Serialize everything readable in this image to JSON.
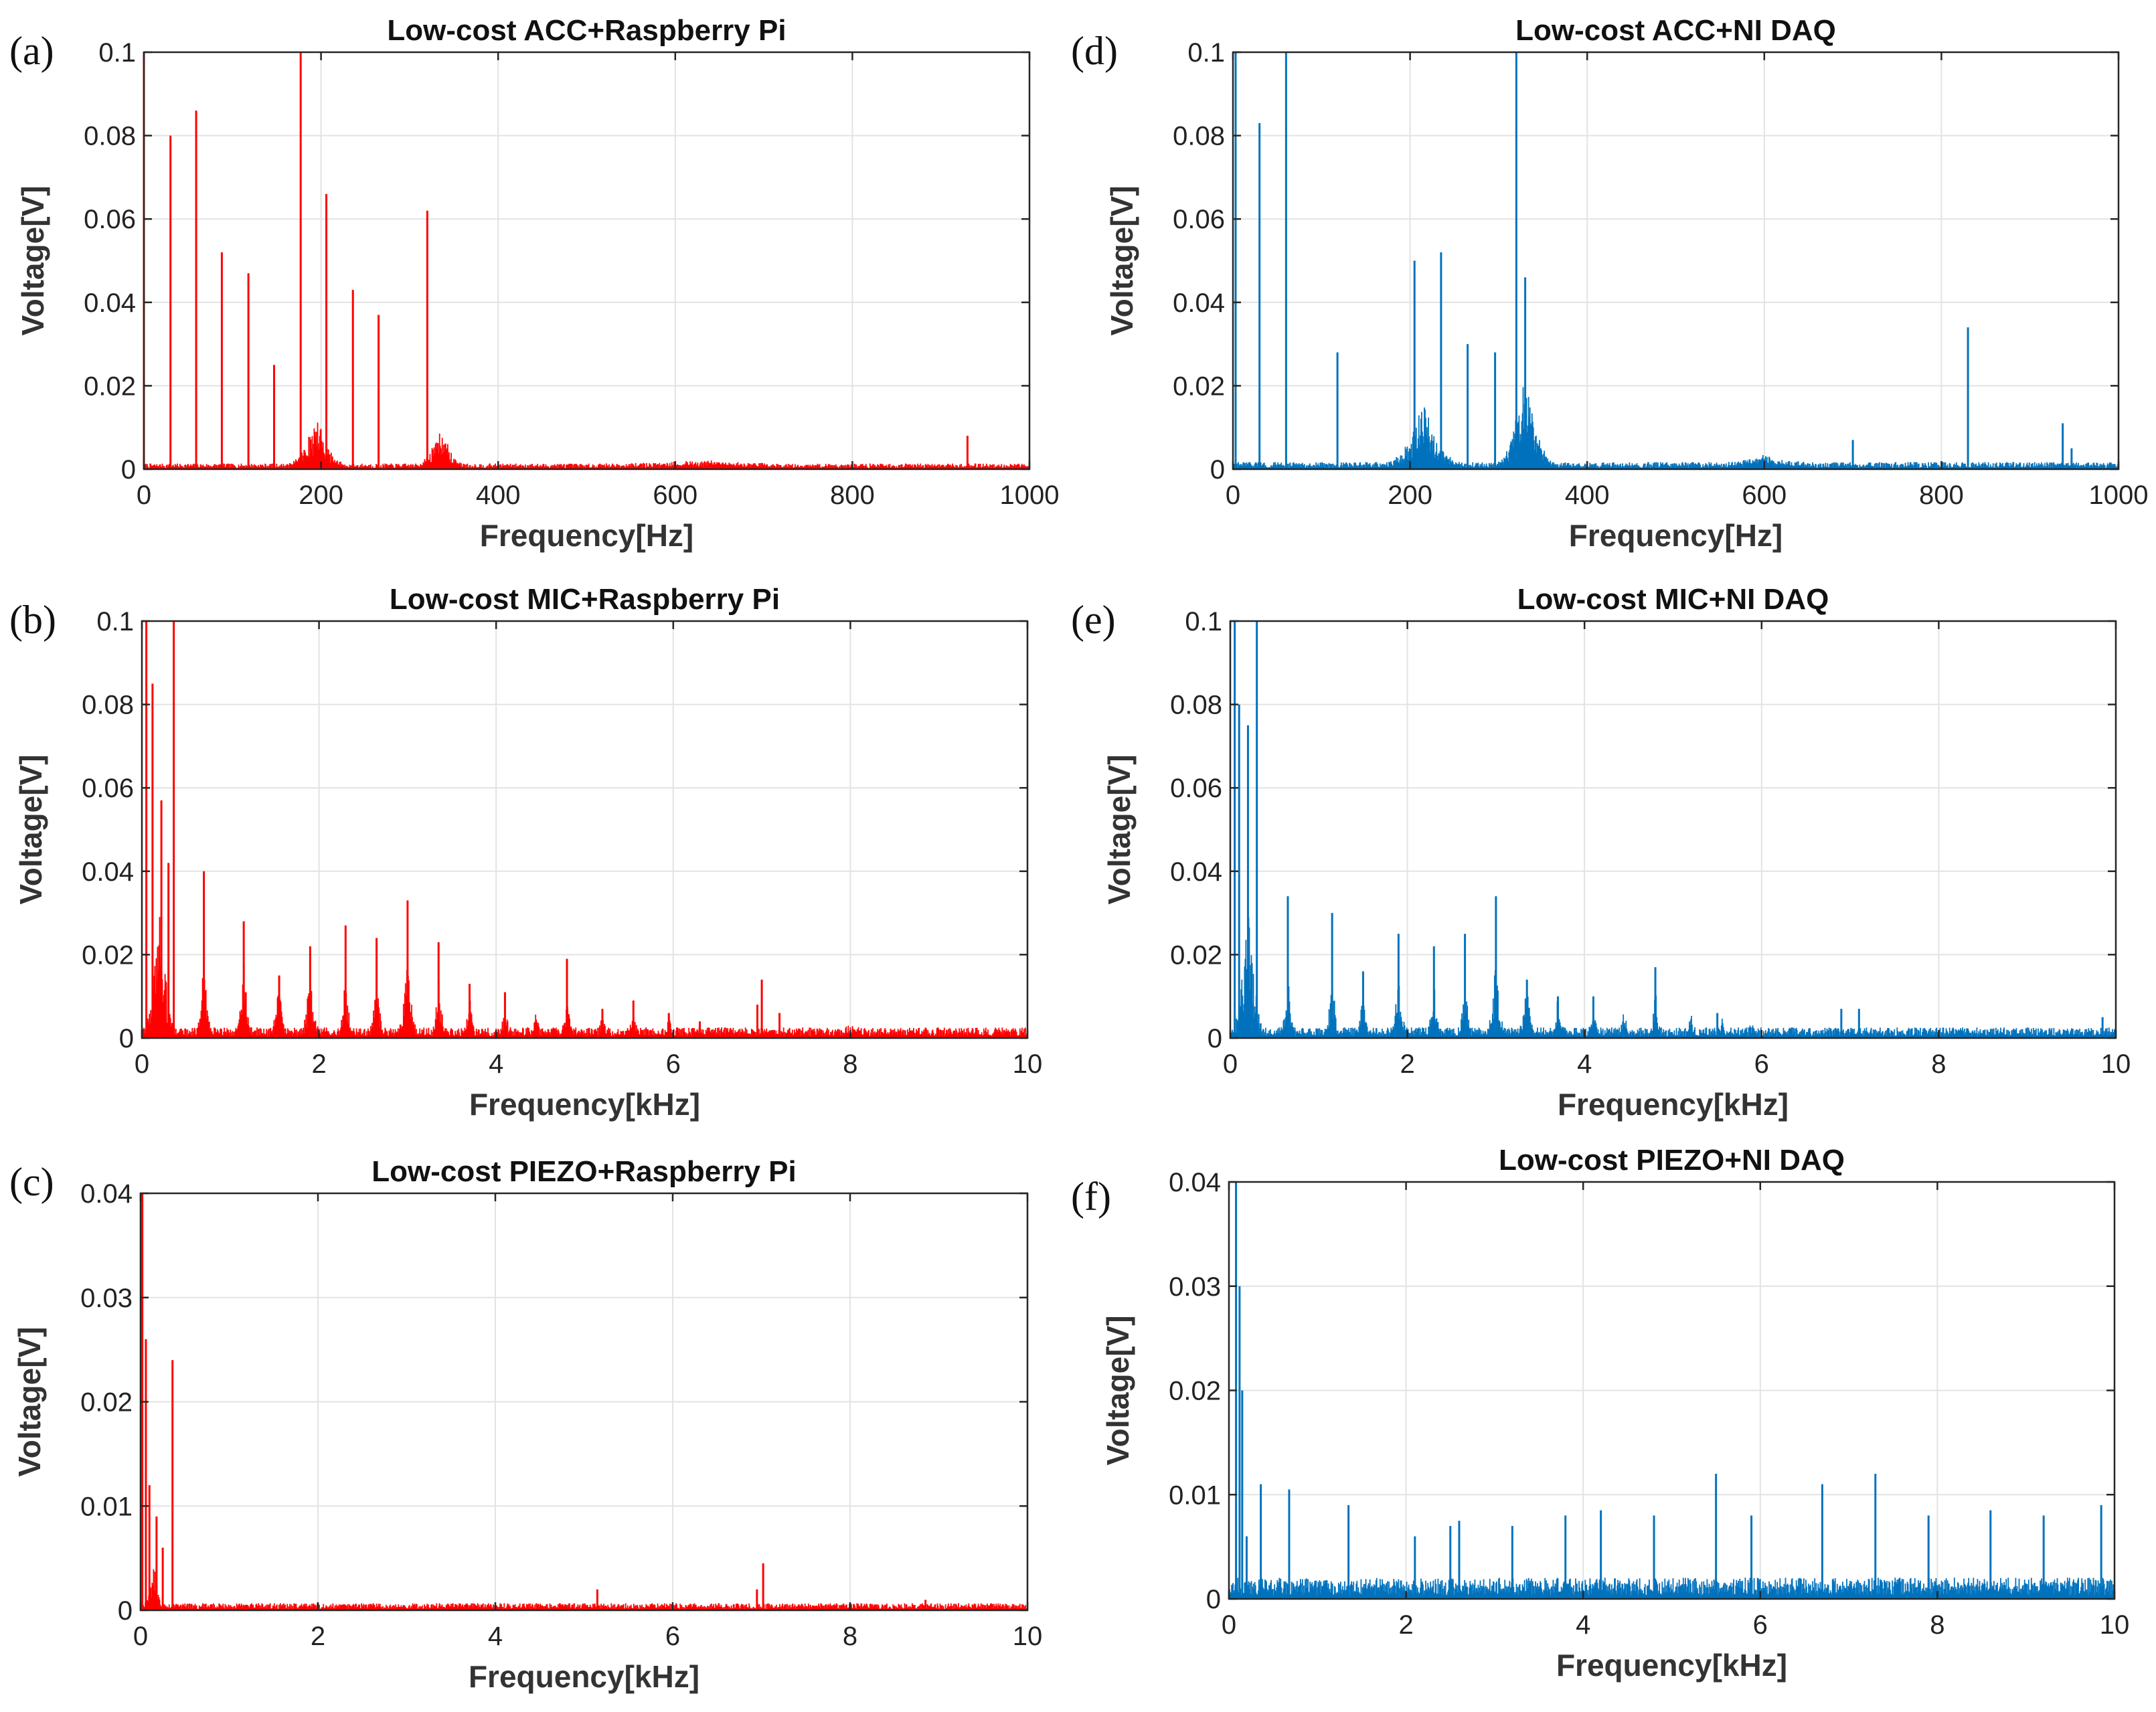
{
  "figure": {
    "colors": {
      "red": "#ff0000",
      "blue": "#0072bd"
    }
  },
  "chart_data": [
    {
      "id": "a",
      "panel_letter": "(a)",
      "type": "line",
      "title": "Low-cost ACC+Raspberry Pi",
      "xlabel": "Frequency[Hz]",
      "ylabel": "Voltage[V]",
      "color": "#ff0000",
      "xlim": [
        0,
        1000
      ],
      "ylim": [
        0,
        0.1
      ],
      "xticks": [
        0,
        200,
        400,
        600,
        800,
        1000
      ],
      "xtick_labels": [
        "0",
        "200",
        "400",
        "600",
        "800",
        "1000"
      ],
      "yticks": [
        0,
        0.02,
        0.04,
        0.06,
        0.08,
        0.1
      ],
      "ytick_labels": [
        "0",
        "0.02",
        "0.04",
        "0.06",
        "0.08",
        "0.1"
      ],
      "grid": true,
      "noise_floor": 0.0008,
      "peaks": [
        [
          0,
          0.1
        ],
        [
          30,
          0.08
        ],
        [
          59,
          0.086
        ],
        [
          88,
          0.052
        ],
        [
          118,
          0.047
        ],
        [
          147,
          0.025
        ],
        [
          177,
          0.1
        ],
        [
          206,
          0.066
        ],
        [
          236,
          0.043
        ],
        [
          265,
          0.037
        ],
        [
          320,
          0.062
        ],
        [
          930,
          0.008
        ]
      ],
      "bumps": [
        [
          195,
          35,
          0.012
        ],
        [
          335,
          28,
          0.01
        ],
        [
          630,
          130,
          0.001
        ]
      ]
    },
    {
      "id": "b",
      "panel_letter": "(b)",
      "type": "line",
      "title": "Low-cost MIC+Raspberry Pi",
      "xlabel": "Frequency[kHz]",
      "ylabel": "Voltage[V]",
      "color": "#ff0000",
      "xlim": [
        0,
        10
      ],
      "ylim": [
        0,
        0.1
      ],
      "xticks": [
        0,
        2,
        4,
        6,
        8,
        10
      ],
      "xtick_labels": [
        "0",
        "2",
        "4",
        "6",
        "8",
        "10"
      ],
      "yticks": [
        0,
        0.02,
        0.04,
        0.06,
        0.08,
        0.1
      ],
      "ytick_labels": [
        "0",
        "0.02",
        "0.04",
        "0.06",
        "0.08",
        "0.1"
      ],
      "grid": true,
      "noise_floor": 0.0015,
      "peaks": [
        [
          0.05,
          0.1
        ],
        [
          0.12,
          0.085
        ],
        [
          0.22,
          0.057
        ],
        [
          0.3,
          0.042
        ],
        [
          0.36,
          0.1
        ],
        [
          0.7,
          0.04
        ],
        [
          1.15,
          0.028
        ],
        [
          1.55,
          0.015
        ],
        [
          1.9,
          0.022
        ],
        [
          2.3,
          0.027
        ],
        [
          2.65,
          0.024
        ],
        [
          3.0,
          0.033
        ],
        [
          3.35,
          0.023
        ],
        [
          3.7,
          0.013
        ],
        [
          4.1,
          0.011
        ],
        [
          4.8,
          0.019
        ],
        [
          5.2,
          0.007
        ],
        [
          5.55,
          0.009
        ],
        [
          5.95,
          0.006
        ],
        [
          6.3,
          0.004
        ],
        [
          6.95,
          0.008
        ],
        [
          7.0,
          0.014
        ],
        [
          7.2,
          0.006
        ]
      ],
      "bumps": [
        [
          0.2,
          0.2,
          0.03
        ],
        [
          0.7,
          0.09,
          0.019
        ],
        [
          1.15,
          0.09,
          0.018
        ],
        [
          1.55,
          0.1,
          0.012
        ],
        [
          1.9,
          0.1,
          0.016
        ],
        [
          2.3,
          0.08,
          0.016
        ],
        [
          2.65,
          0.08,
          0.017
        ],
        [
          3.0,
          0.11,
          0.024
        ],
        [
          3.35,
          0.08,
          0.015
        ],
        [
          3.7,
          0.07,
          0.01
        ],
        [
          4.1,
          0.07,
          0.007
        ],
        [
          4.45,
          0.06,
          0.005
        ],
        [
          4.8,
          0.07,
          0.012
        ],
        [
          5.2,
          0.06,
          0.005
        ],
        [
          5.55,
          0.06,
          0.005
        ],
        [
          5.95,
          0.06,
          0.004
        ],
        [
          8.0,
          0.15,
          0.001
        ]
      ]
    },
    {
      "id": "c",
      "panel_letter": "(c)",
      "type": "line",
      "title": "Low-cost PIEZO+Raspberry Pi",
      "xlabel": "Frequency[kHz]",
      "ylabel": "Voltage[V]",
      "color": "#ff0000",
      "xlim": [
        0,
        10
      ],
      "ylim": [
        0,
        0.04
      ],
      "xticks": [
        0,
        2,
        4,
        6,
        8,
        10
      ],
      "xtick_labels": [
        "0",
        "2",
        "4",
        "6",
        "8",
        "10"
      ],
      "yticks": [
        0,
        0.01,
        0.02,
        0.03,
        0.04
      ],
      "ytick_labels": [
        "0",
        "0.01",
        "0.02",
        "0.03",
        "0.04"
      ],
      "grid": true,
      "noise_floor": 0.0004,
      "peaks": [
        [
          0.02,
          0.04
        ],
        [
          0.06,
          0.026
        ],
        [
          0.1,
          0.012
        ],
        [
          0.18,
          0.009
        ],
        [
          0.25,
          0.006
        ],
        [
          0.36,
          0.024
        ],
        [
          5.15,
          0.002
        ],
        [
          6.95,
          0.002
        ],
        [
          7.02,
          0.0045
        ],
        [
          8.85,
          0.001
        ]
      ],
      "bumps": [
        [
          0.15,
          0.12,
          0.004
        ]
      ]
    },
    {
      "id": "d",
      "panel_letter": "(d)",
      "type": "line",
      "title": "Low-cost ACC+NI DAQ",
      "xlabel": "Frequency[Hz]",
      "ylabel": "Voltage[V]",
      "color": "#0072bd",
      "xlim": [
        0,
        1000
      ],
      "ylim": [
        0,
        0.1
      ],
      "xticks": [
        0,
        200,
        400,
        600,
        800,
        1000
      ],
      "xtick_labels": [
        "0",
        "200",
        "400",
        "600",
        "800",
        "1000"
      ],
      "yticks": [
        0,
        0.02,
        0.04,
        0.06,
        0.08,
        0.1
      ],
      "ytick_labels": [
        "0",
        "0.02",
        "0.04",
        "0.06",
        "0.08",
        "0.1"
      ],
      "grid": true,
      "noise_floor": 0.001,
      "peaks": [
        [
          3,
          0.1
        ],
        [
          30,
          0.083
        ],
        [
          60,
          0.1
        ],
        [
          118,
          0.028
        ],
        [
          205,
          0.05
        ],
        [
          235,
          0.052
        ],
        [
          265,
          0.03
        ],
        [
          296,
          0.028
        ],
        [
          320,
          0.1
        ],
        [
          330,
          0.046
        ],
        [
          700,
          0.007
        ],
        [
          830,
          0.034
        ],
        [
          937,
          0.011
        ],
        [
          947,
          0.005
        ]
      ],
      "bumps": [
        [
          215,
          45,
          0.015
        ],
        [
          330,
          35,
          0.022
        ],
        [
          600,
          60,
          0.002
        ]
      ]
    },
    {
      "id": "e",
      "panel_letter": "(e)",
      "type": "line",
      "title": "Low-cost MIC+NI DAQ",
      "xlabel": "Frequency[kHz]",
      "ylabel": "Voltage[V]",
      "color": "#0072bd",
      "xlim": [
        0,
        10
      ],
      "ylim": [
        0,
        0.1
      ],
      "xticks": [
        0,
        2,
        4,
        6,
        8,
        10
      ],
      "xtick_labels": [
        "0",
        "2",
        "4",
        "6",
        "8",
        "10"
      ],
      "yticks": [
        0,
        0.02,
        0.04,
        0.06,
        0.08,
        0.1
      ],
      "ytick_labels": [
        "0",
        "0.02",
        "0.04",
        "0.06",
        "0.08",
        "0.1"
      ],
      "grid": true,
      "noise_floor": 0.0015,
      "peaks": [
        [
          0.05,
          0.1
        ],
        [
          0.1,
          0.08
        ],
        [
          0.2,
          0.075
        ],
        [
          0.3,
          0.1
        ],
        [
          0.65,
          0.034
        ],
        [
          1.15,
          0.03
        ],
        [
          1.5,
          0.016
        ],
        [
          1.9,
          0.025
        ],
        [
          2.3,
          0.022
        ],
        [
          2.65,
          0.025
        ],
        [
          3.0,
          0.034
        ],
        [
          3.35,
          0.014
        ],
        [
          3.7,
          0.01
        ],
        [
          4.1,
          0.01
        ],
        [
          4.8,
          0.017
        ],
        [
          5.5,
          0.006
        ],
        [
          6.9,
          0.007
        ],
        [
          7.1,
          0.007
        ],
        [
          9.85,
          0.005
        ]
      ],
      "bumps": [
        [
          0.2,
          0.2,
          0.03
        ],
        [
          0.65,
          0.09,
          0.015
        ],
        [
          1.15,
          0.08,
          0.016
        ],
        [
          1.5,
          0.08,
          0.01
        ],
        [
          1.9,
          0.1,
          0.014
        ],
        [
          2.3,
          0.08,
          0.013
        ],
        [
          2.65,
          0.08,
          0.015
        ],
        [
          3.0,
          0.1,
          0.022
        ],
        [
          3.35,
          0.1,
          0.012
        ],
        [
          3.7,
          0.07,
          0.008
        ],
        [
          4.1,
          0.07,
          0.006
        ],
        [
          4.45,
          0.06,
          0.005
        ],
        [
          4.8,
          0.07,
          0.011
        ],
        [
          5.2,
          0.06,
          0.004
        ],
        [
          5.55,
          0.06,
          0.004
        ],
        [
          5.9,
          0.06,
          0.003
        ]
      ]
    },
    {
      "id": "f",
      "panel_letter": "(f)",
      "type": "line",
      "title": "Low-cost PIEZO+NI DAQ",
      "xlabel": "Frequency[kHz]",
      "ylabel": "Voltage[V]",
      "color": "#0072bd",
      "xlim": [
        0,
        10
      ],
      "ylim": [
        0,
        0.04
      ],
      "xticks": [
        0,
        2,
        4,
        6,
        8,
        10
      ],
      "xtick_labels": [
        "0",
        "2",
        "4",
        "6",
        "8",
        "10"
      ],
      "yticks": [
        0,
        0.01,
        0.02,
        0.03,
        0.04
      ],
      "ytick_labels": [
        "0",
        "0.01",
        "0.02",
        "0.03",
        "0.04"
      ],
      "grid": true,
      "noise_floor": 0.0012,
      "peaks": [
        [
          0.08,
          0.04
        ],
        [
          0.12,
          0.03
        ],
        [
          0.15,
          0.02
        ],
        [
          0.2,
          0.006
        ],
        [
          0.36,
          0.011
        ],
        [
          0.68,
          0.0105
        ],
        [
          1.35,
          0.009
        ],
        [
          2.1,
          0.006
        ],
        [
          2.5,
          0.007
        ],
        [
          2.6,
          0.0075
        ],
        [
          3.2,
          0.007
        ],
        [
          3.8,
          0.008
        ],
        [
          4.2,
          0.0085
        ],
        [
          4.8,
          0.008
        ],
        [
          5.5,
          0.012
        ],
        [
          5.9,
          0.008
        ],
        [
          6.7,
          0.011
        ],
        [
          7.3,
          0.012
        ],
        [
          7.9,
          0.008
        ],
        [
          8.6,
          0.0085
        ],
        [
          9.2,
          0.008
        ],
        [
          9.85,
          0.009
        ]
      ],
      "bumps": []
    }
  ]
}
